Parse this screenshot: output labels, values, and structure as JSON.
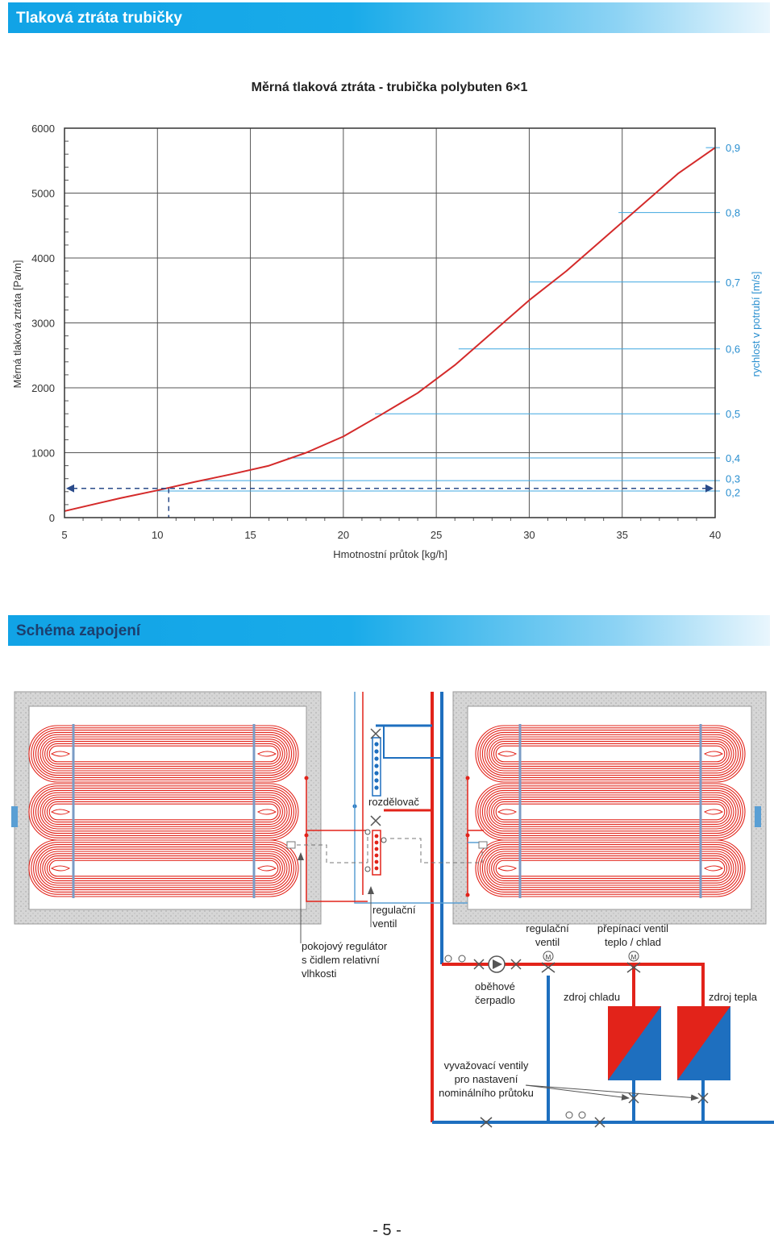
{
  "header": {
    "title": "Tlaková ztráta trubičky"
  },
  "chart_data": {
    "type": "line",
    "title": "Měrná tlaková ztráta - trubička polybuten 6×1",
    "xlabel": "Hmotnostní průtok [kg/h]",
    "ylabel": "Měrná tlaková ztráta [Pa/m]",
    "y2label": "rychlost v potrubí [m/s]",
    "xlim": [
      5,
      40
    ],
    "ylim": [
      0,
      6000
    ],
    "x_ticks": [
      "5",
      "10",
      "15",
      "20",
      "25",
      "30",
      "35",
      "40"
    ],
    "y_ticks": [
      "0",
      "1000",
      "2000",
      "3000",
      "4000",
      "5000",
      "6000"
    ],
    "grid": true,
    "series": [
      {
        "color": "#d42a2a",
        "x": [
          5,
          8,
          10,
          12,
          14,
          16,
          18,
          20,
          22,
          24,
          26,
          28,
          30,
          32,
          34,
          36,
          38,
          40
        ],
        "y": [
          100,
          300,
          420,
          550,
          670,
          800,
          1000,
          1250,
          1580,
          1920,
          2350,
          2850,
          3350,
          3800,
          4300,
          4800,
          5300,
          5700
        ]
      }
    ],
    "velocity_lines": [
      {
        "label": "0,2",
        "y": 410,
        "x_start": 10.0,
        "label_y": 390
      },
      {
        "label": "0,3",
        "y": 570,
        "x_start": 12.3,
        "label_y": 600
      },
      {
        "label": "0,4",
        "y": 920,
        "x_start": 17.0,
        "label_y": 920
      },
      {
        "label": "0,5",
        "y": 1600,
        "x_start": 21.7,
        "label_y": 1600
      },
      {
        "label": "0,6",
        "y": 2600,
        "x_start": 26.2,
        "label_y": 2600
      },
      {
        "label": "0,7",
        "y": 3630,
        "x_start": 30.0,
        "label_y": 3630
      },
      {
        "label": "0,8",
        "y": 4700,
        "x_start": 34.8,
        "label_y": 4700
      },
      {
        "label": "0,9",
        "y": 5700,
        "x_start": 39.5,
        "label_y": 5700
      }
    ],
    "example_reading": {
      "x": 10,
      "y": 450
    }
  },
  "section2": {
    "title": "Schéma zapojení"
  },
  "diagram": {
    "labels": {
      "rozdelovac": "rozdělovač",
      "reg_ventil_1": "regulační",
      "reg_ventil_2": "ventil",
      "pokojovy_1": "pokojový regulátor",
      "pokojovy_2": "s čidlem relativní",
      "pokojovy_3": "vlhkosti",
      "reg_ventil_b1": "regulační",
      "reg_ventil_b2": "ventil",
      "prepinaci_1": "přepínací ventil",
      "prepinaci_2": "teplo / chlad",
      "obehove_1": "oběhové",
      "obehove_2": "čerpadlo",
      "zdroj_chladu": "zdroj chladu",
      "zdroj_tepla": "zdroj tepla",
      "vyvaz_1": "vyvažovací ventily",
      "vyvaz_2": "pro nastavení",
      "vyvaz_3": "nominálního průtoku",
      "motor_m": "M"
    },
    "colors": {
      "hot": "#e2231a",
      "cold": "#1e6fbf",
      "light_cold": "#5a9fd4",
      "wall": "#c8c8c8"
    }
  },
  "footer": {
    "page_number": "- 5 -"
  }
}
